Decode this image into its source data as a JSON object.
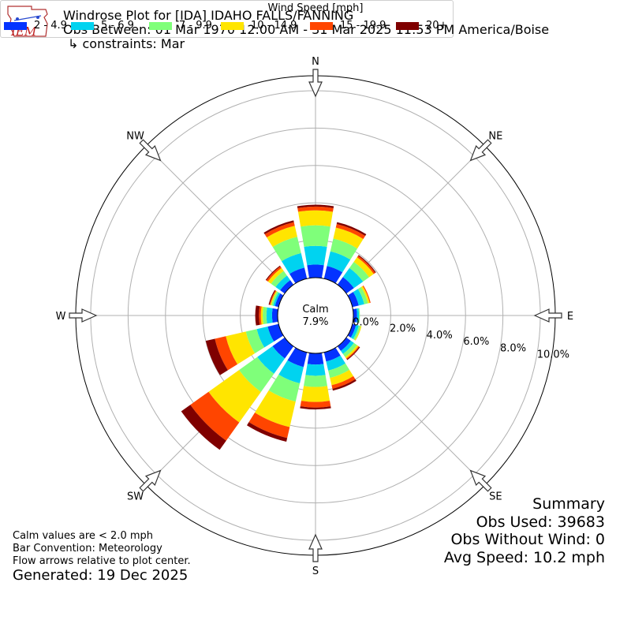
{
  "logo": {
    "text": "IEM"
  },
  "title": {
    "line1": "Windrose Plot for [IDA] IDAHO FALLS/FANNING",
    "line2": "Obs Between: 01 Mar 1970 12:00 AM - 31 Mar 2025 11:53 PM America/Boise",
    "line3": "↳ constraints: Mar"
  },
  "calm": {
    "label": "Calm",
    "value": "7.9%"
  },
  "notes": {
    "line1": "Calm values are < 2.0 mph",
    "line2": "Bar Convention: Meteorology",
    "line3": "Flow arrows relative to plot center.",
    "generated": "Generated: 19 Dec 2025"
  },
  "summary": {
    "title": "Summary",
    "obs_used": "Obs Used: 39683",
    "obs_without_wind": "Obs Without Wind: 0",
    "avg_speed": "Avg Speed: 10.2 mph"
  },
  "legend": {
    "title": "Wind Speed [mph]",
    "items": [
      {
        "label": "2 - 4.9",
        "color": "#0433ff"
      },
      {
        "label": "5 - 6.9",
        "color": "#00d3f0"
      },
      {
        "label": "7 - 9.9",
        "color": "#7fff7a"
      },
      {
        "label": "10 - 14.9",
        "color": "#ffe500"
      },
      {
        "label": "15 - 19.9",
        "color": "#ff4500"
      },
      {
        "label": "20+",
        "color": "#7f0000"
      }
    ]
  },
  "chart_data": {
    "type": "windrose",
    "calm_percent": 7.9,
    "radial_unit": "percent",
    "radial_ticks": [
      "0.0%",
      "2.0%",
      "4.0%",
      "6.0%",
      "8.0%",
      "10.0%"
    ],
    "radial_max": 10.8,
    "compass_labels": [
      "N",
      "NE",
      "E",
      "SE",
      "S",
      "SW",
      "W",
      "NW"
    ],
    "bins": [
      "2 - 4.9",
      "5 - 6.9",
      "7 - 9.9",
      "10 - 14.9",
      "15 - 19.9",
      "20+"
    ],
    "directions": [
      {
        "dir": "N",
        "values": [
          0.7,
          1.0,
          1.1,
          0.8,
          0.2,
          0.1
        ]
      },
      {
        "dir": "NNE",
        "values": [
          0.7,
          0.8,
          0.7,
          0.6,
          0.2,
          0.1
        ]
      },
      {
        "dir": "NE",
        "values": [
          0.5,
          0.6,
          0.4,
          0.3,
          0.1,
          0.05
        ]
      },
      {
        "dir": "ENE",
        "values": [
          0.35,
          0.3,
          0.2,
          0.1,
          0.05,
          0
        ]
      },
      {
        "dir": "E",
        "values": [
          0.2,
          0.1,
          0.05,
          0,
          0,
          0
        ]
      },
      {
        "dir": "ESE",
        "values": [
          0.2,
          0.15,
          0.1,
          0.05,
          0,
          0
        ]
      },
      {
        "dir": "SE",
        "values": [
          0.3,
          0.2,
          0.2,
          0.1,
          0.05,
          0.05
        ]
      },
      {
        "dir": "SSE",
        "values": [
          0.5,
          0.5,
          0.4,
          0.4,
          0.2,
          0.1
        ]
      },
      {
        "dir": "S",
        "values": [
          0.6,
          0.6,
          0.6,
          0.8,
          0.3,
          0.1
        ]
      },
      {
        "dir": "SSW",
        "values": [
          0.8,
          0.9,
          1.0,
          1.4,
          0.6,
          0.2
        ]
      },
      {
        "dir": "SW",
        "values": [
          0.8,
          1.0,
          1.2,
          2.0,
          1.2,
          0.6
        ]
      },
      {
        "dir": "WSW",
        "values": [
          0.6,
          0.6,
          0.6,
          1.1,
          0.6,
          0.5
        ]
      },
      {
        "dir": "W",
        "values": [
          0.3,
          0.3,
          0.2,
          0.1,
          0.1,
          0.2
        ]
      },
      {
        "dir": "WNW",
        "values": [
          0.2,
          0.1,
          0.1,
          0.05,
          0.05,
          0.05
        ]
      },
      {
        "dir": "NW",
        "values": [
          0.3,
          0.3,
          0.3,
          0.2,
          0.1,
          0.05
        ]
      },
      {
        "dir": "NNW",
        "values": [
          0.6,
          0.8,
          0.9,
          0.6,
          0.2,
          0.1
        ]
      }
    ]
  }
}
